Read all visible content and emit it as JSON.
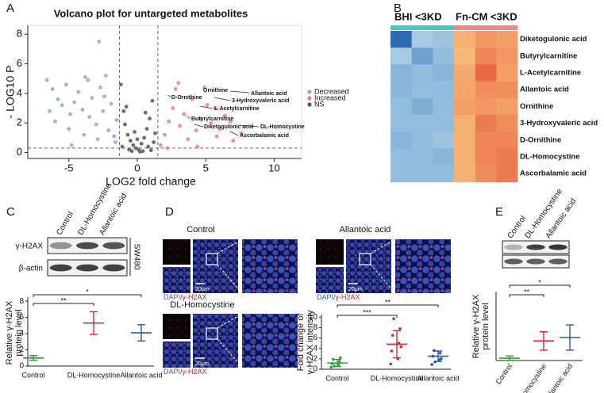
{
  "panel_labels": [
    "A",
    "B",
    "C",
    "D",
    "E"
  ],
  "chart_data": [
    {
      "type": "scatter",
      "title": "Volcano plot for untargeted metabolites",
      "xlabel": "LOG2 fold change",
      "ylabel": "- LOG10 P",
      "xlim": [
        -8,
        12
      ],
      "ylim": [
        -0.4,
        8.6
      ],
      "xticks": [
        -5,
        0,
        5,
        10
      ],
      "yticks": [
        0,
        2,
        4,
        6,
        8
      ],
      "thresholds": {
        "x": [
          -1.3,
          1.5
        ],
        "y": 0.3
      },
      "legend": "right",
      "series": [
        {
          "name": "Decreased",
          "color": "#8aa6dc",
          "x": [
            -6.6,
            -6.2,
            -5.8,
            -5.5,
            -5.2,
            -4.9,
            -4.6,
            -4.3,
            -4.0,
            -3.8,
            -3.5,
            -3.3,
            -3.0,
            -2.8,
            -2.7,
            -2.5,
            -2.3,
            -2.1,
            -1.9,
            -1.7,
            -1.5,
            -6.0,
            -5.0,
            -3.9,
            -4.8,
            -2.9,
            -6.4,
            -3.6,
            -2.4,
            -1.6
          ],
          "y": [
            4.9,
            4.3,
            3.6,
            3.2,
            4.6,
            2.6,
            3.4,
            4.1,
            2.9,
            5.1,
            2.4,
            3.7,
            1.9,
            7.5,
            4.4,
            2.8,
            5.2,
            1.5,
            3.3,
            1.1,
            2.2,
            2.1,
            1.6,
            1.2,
            0.5,
            0.9,
            2.8,
            4.9,
            3.8,
            0.7
          ]
        },
        {
          "name": "Increased",
          "color": "#ec7e7e",
          "x": [
            1.7,
            2.0,
            2.3,
            2.6,
            2.8,
            3.1,
            3.4,
            3.7,
            4.0,
            4.3,
            4.6,
            4.9,
            5.1,
            5.4,
            5.7,
            6.0,
            6.4,
            7.0,
            7.6,
            3.0,
            4.4,
            2.2,
            5.8,
            6.8
          ],
          "y": [
            0.5,
            1.2,
            2.1,
            3.0,
            4.3,
            1.8,
            2.6,
            0.9,
            3.6,
            1.5,
            2.3,
            4.4,
            3.2,
            2.0,
            3.0,
            1.6,
            2.5,
            0.8,
            1.3,
            4.7,
            0.4,
            0.3,
            1.1,
            2.1
          ]
        },
        {
          "name": "NS",
          "color": "#555555",
          "x": [
            -1.2,
            -1.0,
            -0.9,
            -0.7,
            -0.5,
            -0.3,
            -0.1,
            0.1,
            0.3,
            0.5,
            0.7,
            0.9,
            1.1,
            1.3,
            -0.6,
            0.0,
            0.4,
            -0.2,
            0.8,
            1.2,
            -1.1,
            0.6,
            -0.8,
            0.2,
            1.0,
            -0.4
          ],
          "y": [
            4.6,
            2.8,
            1.9,
            1.2,
            0.8,
            0.5,
            0.3,
            0.2,
            0.6,
            1.0,
            1.6,
            2.3,
            3.5,
            1.3,
            0.2,
            0.9,
            0.1,
            1.4,
            0.4,
            0.7,
            0.4,
            2.7,
            3.1,
            0.05,
            0.15,
            0.1
          ]
        }
      ],
      "annotations": [
        "Ornithine",
        "Allantoic acid",
        "3-Hydroxyvaleric acid",
        "D-Ornithine",
        "L-Acetylcarnitine",
        "Butyrylcarnitine",
        "Diketogulonic acid",
        "DL-Homocystine",
        "Ascorbalamic acid"
      ]
    },
    {
      "type": "heatmap",
      "groups": [
        {
          "name": "BHI <3KD",
          "color": "#4fc3c8"
        },
        {
          "name": "Fn-CM <3KD",
          "color": "#e98b8d"
        }
      ],
      "column_group": [
        0,
        0,
        0,
        1,
        1,
        1
      ],
      "rows": [
        "Diketogulonic acid",
        "Butyrylcarnitine",
        "L-Acetylcarnitine",
        "Allantoic acid",
        "Ornithine",
        "3-Hydroxyvaleric acid",
        "D-Ornithine",
        "DL-Homocystine",
        "Ascorbalamic acid"
      ],
      "zlim": [
        -1.5,
        1.5
      ],
      "values": [
        [
          -1.5,
          -0.6,
          -0.7,
          0.5,
          0.8,
          0.7
        ],
        [
          -0.6,
          -1.1,
          -0.8,
          0.4,
          1.0,
          0.8
        ],
        [
          -0.9,
          -0.8,
          -0.9,
          0.6,
          1.3,
          0.7
        ],
        [
          -0.9,
          -0.8,
          -0.8,
          0.6,
          0.9,
          0.9
        ],
        [
          -0.8,
          -1.0,
          -0.8,
          0.7,
          0.8,
          0.7
        ],
        [
          -0.8,
          -0.8,
          -0.8,
          0.5,
          1.1,
          0.9
        ],
        [
          -0.9,
          -0.8,
          -0.7,
          0.5,
          1.0,
          1.0
        ],
        [
          -0.8,
          -0.8,
          -0.9,
          0.5,
          1.0,
          1.1
        ],
        [
          -0.8,
          -0.8,
          -0.8,
          0.5,
          0.9,
          1.1
        ]
      ]
    },
    {
      "type": "errorplot",
      "ylabel": [
        "Relative γ-H2AX",
        "protein level"
      ],
      "categories": [
        "Control",
        "DL-Homocystine",
        "Allantoic acid"
      ],
      "colors": [
        "#2e9b3a",
        "#d9262c",
        "#2b57a8"
      ],
      "means": [
        1.0,
        5.3,
        4.1
      ],
      "errors": [
        0.3,
        1.4,
        1.0
      ],
      "ylim": [
        0,
        8.5
      ],
      "yticks": [
        0,
        2,
        4,
        6,
        8
      ],
      "significance": [
        {
          "from": 0,
          "to": 1,
          "label": "**"
        },
        {
          "from": 0,
          "to": 2,
          "label": "*"
        }
      ]
    },
    {
      "type": "errorplot",
      "ylabel": [
        "Fold change of",
        "γ-H2AX intensity"
      ],
      "categories": [
        "Control",
        "DL-Homocystine",
        "Allantoic acid"
      ],
      "colors": [
        "#2e9b3a",
        "#d9262c",
        "#2b57a8"
      ],
      "means": [
        1.2,
        4.8,
        2.5
      ],
      "errors": [
        0.7,
        2.6,
        1.0
      ],
      "points": [
        [
          0.4,
          0.8,
          1.1,
          1.5,
          1.9,
          2.2,
          0.6
        ],
        [
          1.0,
          2.0,
          3.5,
          5.0,
          6.5,
          7.8,
          9.7,
          4.3
        ],
        [
          0.9,
          1.8,
          2.5,
          3.1,
          3.6,
          2.0,
          1.4
        ]
      ],
      "ylim": [
        0,
        10.5
      ],
      "yticks": [
        0,
        2,
        4,
        6,
        8,
        10
      ],
      "significance": [
        {
          "from": 0,
          "to": 1,
          "label": "***"
        },
        {
          "from": 0,
          "to": 2,
          "label": "**"
        }
      ]
    },
    {
      "type": "errorplot",
      "ylabel": [
        "Relative γ-H2AX",
        "protein level"
      ],
      "categories": [
        "Control",
        "DL-Homocystine",
        "Allantoic acid"
      ],
      "colors": [
        "#2e9b3a",
        "#d9262c",
        "#2b57a8"
      ],
      "means": [
        0.1,
        0.85,
        1.0
      ],
      "errors": [
        0.1,
        0.4,
        0.55
      ],
      "ylim": [
        0,
        3
      ],
      "significance": [
        {
          "from": 0,
          "to": 1,
          "label": "**"
        },
        {
          "from": 0,
          "to": 2,
          "label": "*"
        }
      ]
    }
  ],
  "blots": [
    {
      "columns": [
        "Control",
        "DL-Homocystine",
        "Allantoic acid"
      ],
      "rows": [
        "γ-H2AX",
        "β-actin"
      ],
      "cell_line": "SW480"
    },
    {
      "columns": [
        "Control",
        "DL-Homocystine",
        "Allantoic acid"
      ]
    }
  ],
  "imaging": {
    "titles": [
      "Control",
      "Allantoic acid",
      "DL-Homocystine"
    ],
    "scale_bar": "20μm",
    "stain": [
      "DAPI",
      "/γ-H2AX"
    ]
  }
}
